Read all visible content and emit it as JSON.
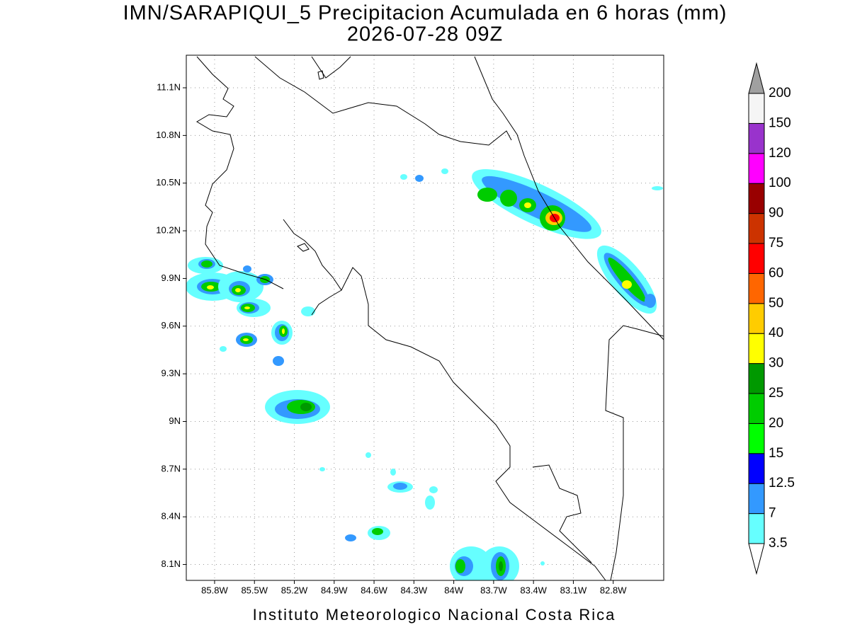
{
  "map": {
    "title": "IMN/SARAPIQUI_5 Precipitacion Acumulada en 6 horas (mm)",
    "subtitle": "2026-07-28 09Z",
    "footer": "Instituto Meteorologico Nacional Costa Rica",
    "xlim": [
      -86.013,
      -82.42
    ],
    "ylim": [
      8.0,
      11.305
    ],
    "xticks": [
      {
        "value": -85.8,
        "label": "85.8W"
      },
      {
        "value": -85.5,
        "label": "85.5W"
      },
      {
        "value": -85.2,
        "label": "85.2W"
      },
      {
        "value": -84.9,
        "label": "84.9W"
      },
      {
        "value": -84.6,
        "label": "84.6W"
      },
      {
        "value": -84.3,
        "label": "84.3W"
      },
      {
        "value": -84.0,
        "label": "84W"
      },
      {
        "value": -83.7,
        "label": "83.7W"
      },
      {
        "value": -83.4,
        "label": "83.4W"
      },
      {
        "value": -83.1,
        "label": "83.1W"
      },
      {
        "value": -82.8,
        "label": "82.8W"
      }
    ],
    "yticks": [
      {
        "value": 11.1,
        "label": "11.1N"
      },
      {
        "value": 10.8,
        "label": "10.8N"
      },
      {
        "value": 10.5,
        "label": "10.5N"
      },
      {
        "value": 10.2,
        "label": "10.2N"
      },
      {
        "value": 9.9,
        "label": "9.9N"
      },
      {
        "value": 9.6,
        "label": "9.6N"
      },
      {
        "value": 9.3,
        "label": "9.3N"
      },
      {
        "value": 9.0,
        "label": "9N"
      },
      {
        "value": 8.7,
        "label": "8.7N"
      },
      {
        "value": 8.4,
        "label": "8.4N"
      },
      {
        "value": 8.1,
        "label": "8.1N"
      }
    ],
    "grid": true,
    "colorbar": {
      "levels": [
        3.5,
        7,
        12.5,
        15,
        20,
        25,
        30,
        40,
        50,
        60,
        75,
        90,
        100,
        120,
        150,
        200
      ],
      "colors": [
        "#ffffff",
        "#66ffff",
        "#3399ff",
        "#0000ff",
        "#00ff00",
        "#00cc00",
        "#009900",
        "#ffff00",
        "#ffcc00",
        "#ff6600",
        "#ff0000",
        "#cc3300",
        "#990000",
        "#ff00ff",
        "#9933cc",
        "#f5f5f5",
        "#a0a0a0"
      ]
    }
  }
}
